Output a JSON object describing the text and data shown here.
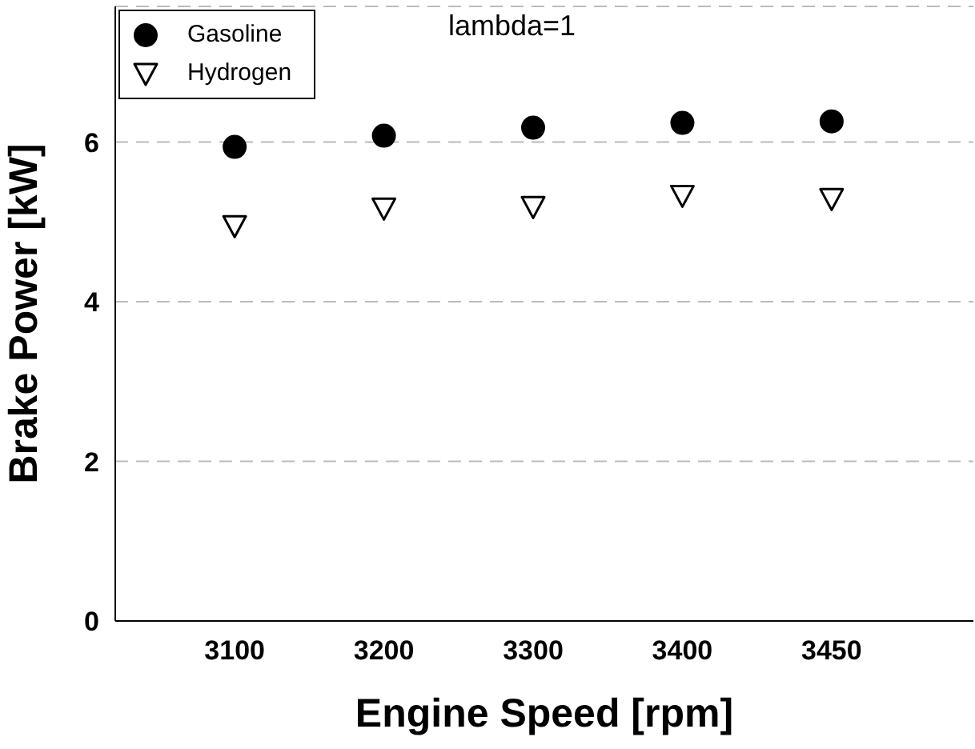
{
  "chart_data": {
    "type": "scatter",
    "xlabel": "Engine Speed [rpm]",
    "ylabel": "Brake Power [kW]",
    "annotations": [
      "lambda=1"
    ],
    "categories": [
      "3100",
      "3200",
      "3300",
      "3400",
      "3450"
    ],
    "series": [
      {
        "name": "Gasoline",
        "color": "#000000",
        "marker": "circle",
        "values": [
          5.94,
          6.08,
          6.18,
          6.24,
          6.26
        ]
      },
      {
        "name": "Hydrogen",
        "color": "#000000",
        "marker": "triangle",
        "values": [
          4.95,
          5.17,
          5.19,
          5.33,
          5.29
        ]
      }
    ],
    "ylim": [
      0,
      7.7
    ],
    "yticks": [
      0,
      2,
      4,
      6
    ],
    "grid": "y",
    "legend": "top left"
  }
}
